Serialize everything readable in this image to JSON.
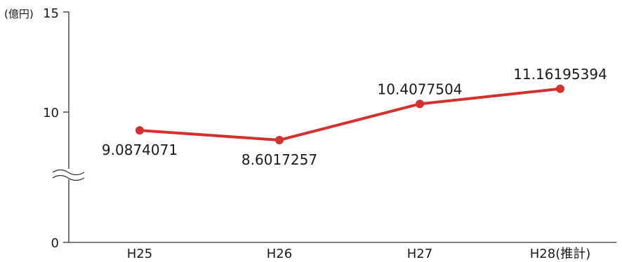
{
  "chart_data": {
    "type": "line",
    "unit_label": "(億円)",
    "categories": [
      "H25",
      "H26",
      "H27",
      "H28(推計)"
    ],
    "series": [
      {
        "values": [
          9.0874071,
          8.6017257,
          10.4077504,
          11.16195394
        ],
        "labels": [
          "9.0874071",
          "8.6017257",
          "10.4077504",
          "11.16195394"
        ]
      }
    ],
    "yticks": [
      "0",
      "10",
      "15"
    ],
    "ylim": [
      0,
      15
    ],
    "axis_break": true,
    "grid": false,
    "legend": "none",
    "colors": {
      "line": "#d3302f",
      "marker": "#d3302f",
      "axis": "#333333"
    }
  }
}
